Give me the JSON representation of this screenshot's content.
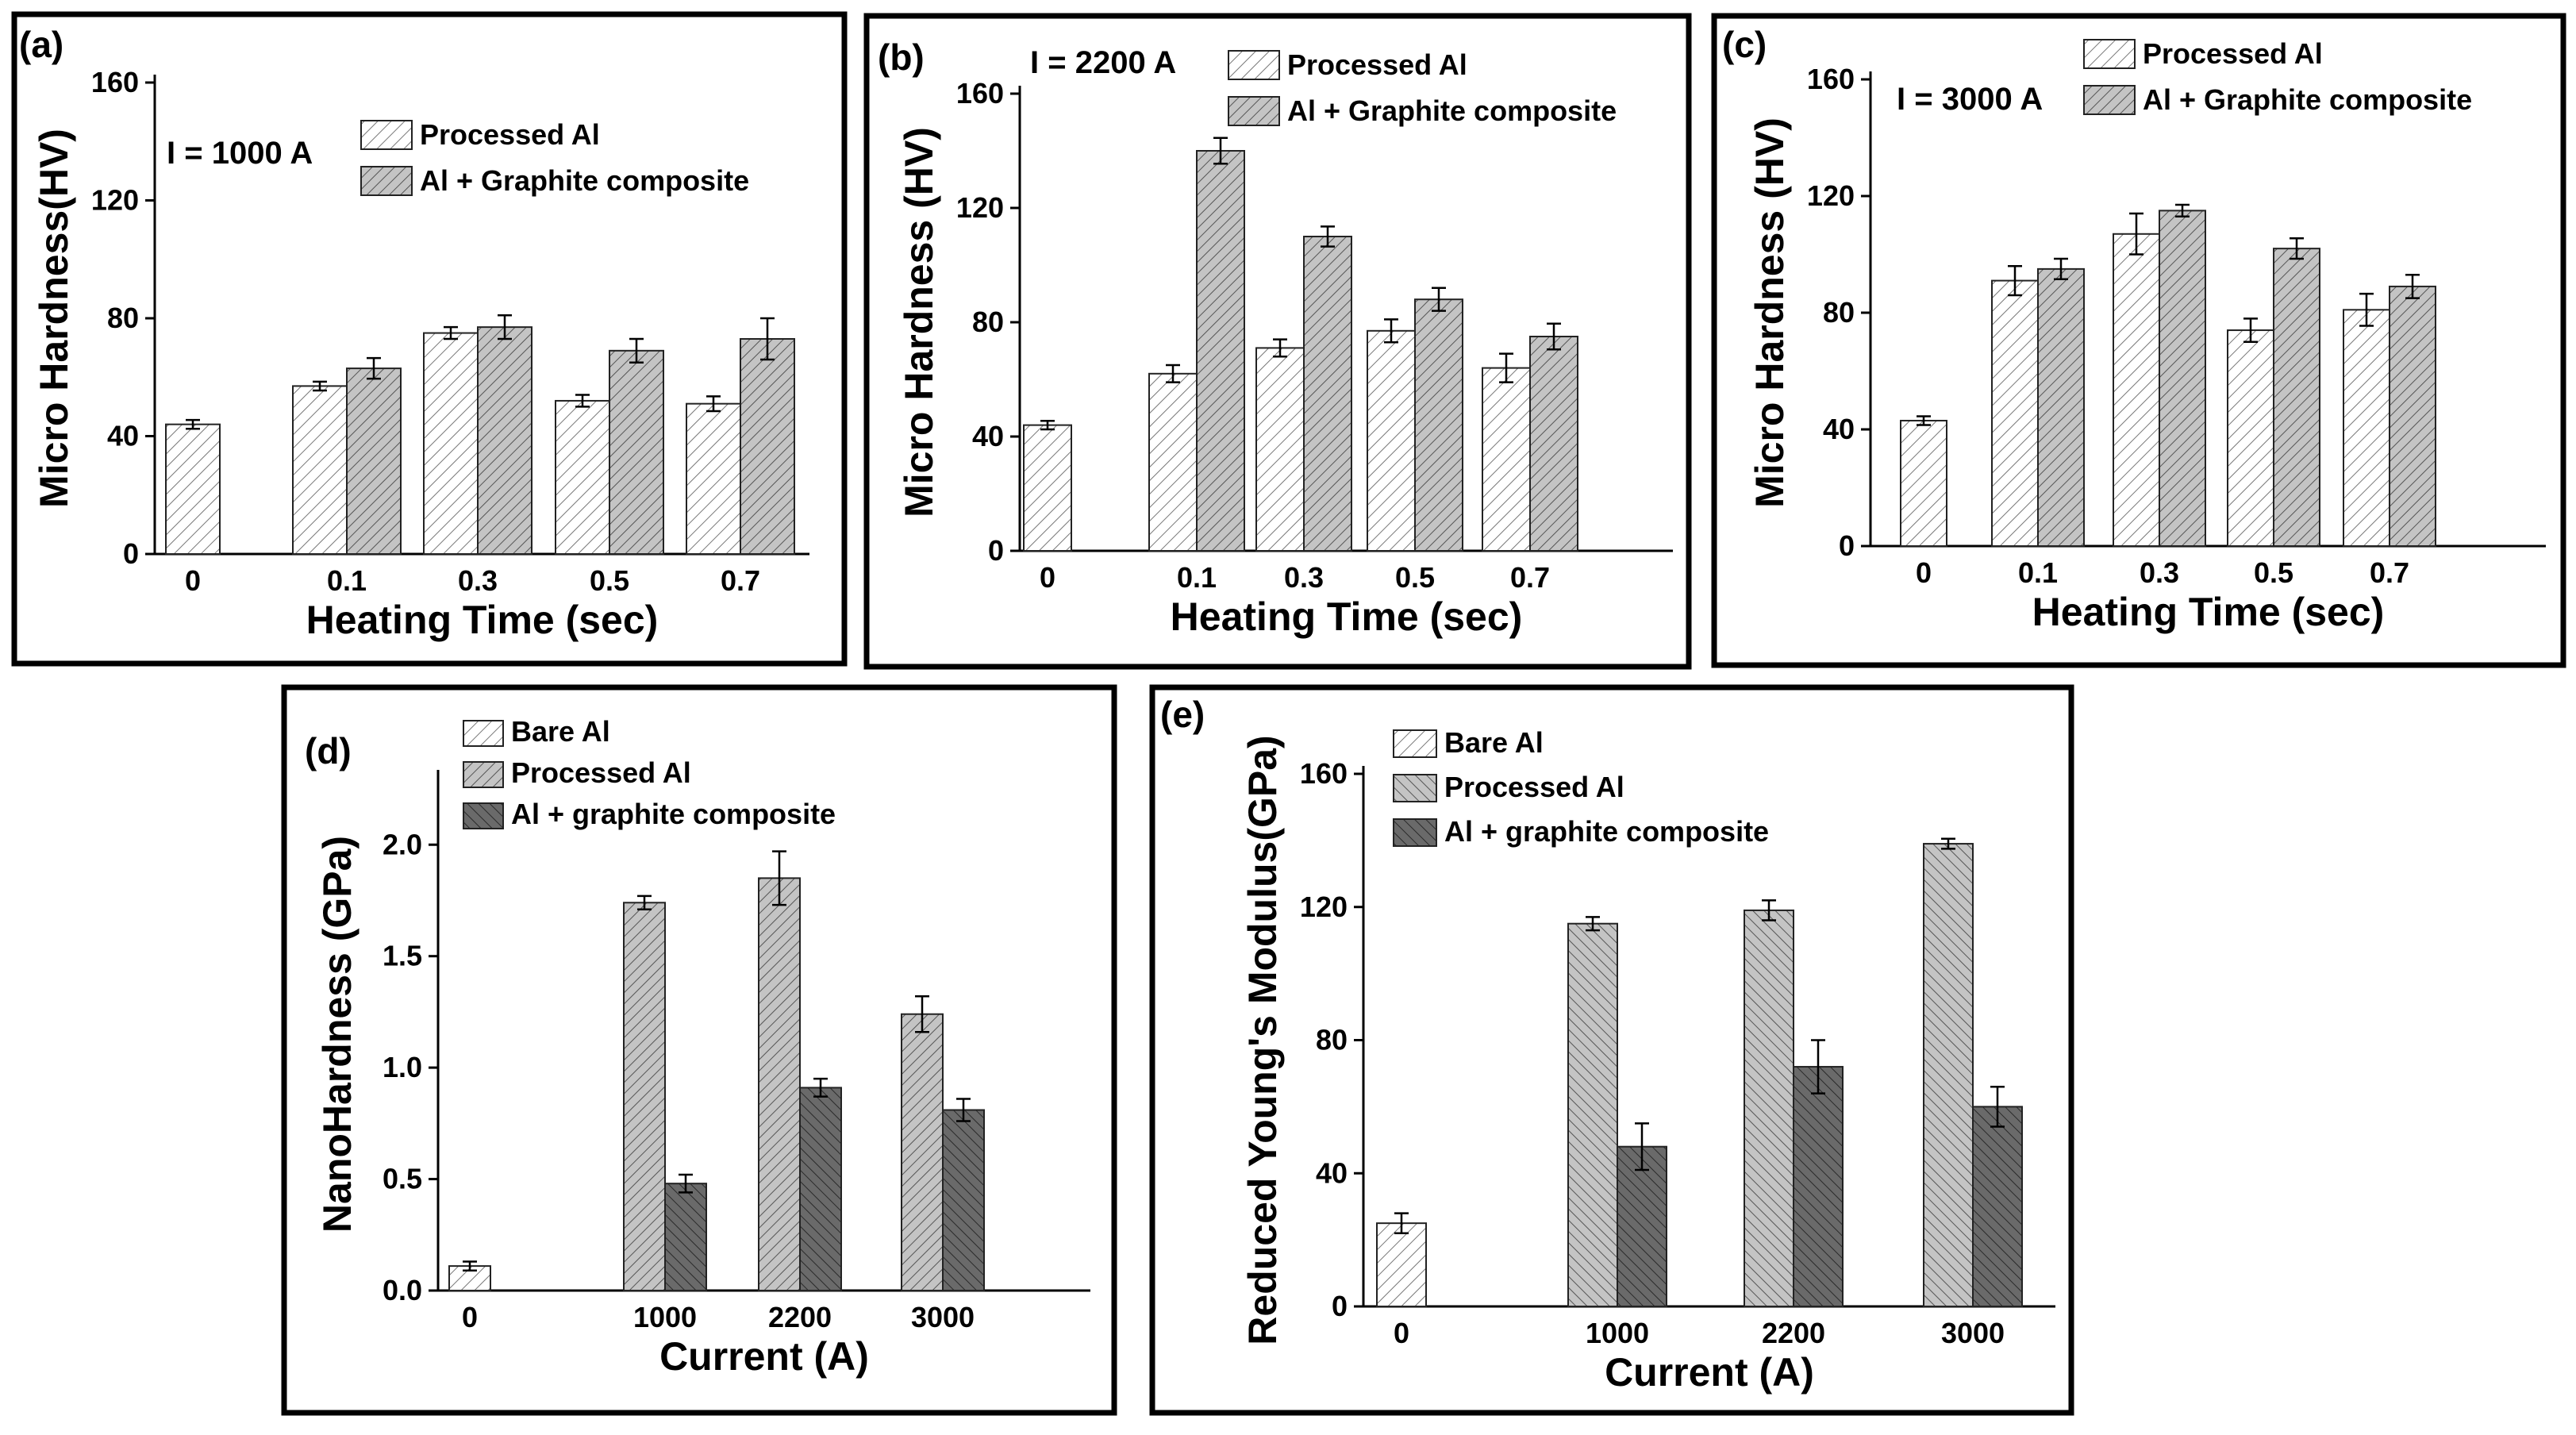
{
  "chart_data": [
    {
      "type": "bar",
      "panel_label": "(a)",
      "annotation": "I = 1000 A",
      "title": "",
      "xlabel": "Heating Time (sec)",
      "ylabel": "Micro Hardness(HV)",
      "categories": [
        "0",
        "0.1",
        "0.3",
        "0.5",
        "0.7"
      ],
      "ylim": [
        0,
        160
      ],
      "yticks": [
        "0",
        "40",
        "80",
        "120",
        "160"
      ],
      "series": [
        {
          "name": "Processed Al",
          "values": [
            44,
            57,
            75,
            52,
            51
          ],
          "errors": [
            1.5,
            1.5,
            2,
            2,
            2.5
          ]
        },
        {
          "name": "Al + Graphite composite",
          "values": [
            null,
            63,
            77,
            69,
            73
          ],
          "errors": [
            null,
            3.5,
            4,
            4,
            7
          ]
        }
      ],
      "legend": "top-right"
    },
    {
      "type": "bar",
      "panel_label": "(b)",
      "annotation": "I = 2200 A",
      "title": "",
      "xlabel": "Heating Time (sec)",
      "ylabel": "Micro Hardness (HV)",
      "categories": [
        "0",
        "0.1",
        "0.3",
        "0.5",
        "0.7"
      ],
      "ylim": [
        0,
        160
      ],
      "yticks": [
        "0",
        "40",
        "80",
        "120",
        "160"
      ],
      "series": [
        {
          "name": "Processed Al",
          "values": [
            44,
            62,
            71,
            77,
            64
          ],
          "errors": [
            1.5,
            3,
            3,
            4,
            5
          ]
        },
        {
          "name": "Al + Graphite composite",
          "values": [
            null,
            140,
            110,
            88,
            75
          ],
          "errors": [
            null,
            4.5,
            3.5,
            4,
            4.5
          ]
        }
      ],
      "legend": "top-right"
    },
    {
      "type": "bar",
      "panel_label": "(c)",
      "annotation": "I = 3000 A",
      "title": "",
      "xlabel": "Heating Time (sec)",
      "ylabel": "Micro Hardness (HV)",
      "categories": [
        "0",
        "0.1",
        "0.3",
        "0.5",
        "0.7"
      ],
      "ylim": [
        0,
        160
      ],
      "yticks": [
        "0",
        "40",
        "80",
        "120",
        "160"
      ],
      "series": [
        {
          "name": "Processed Al",
          "values": [
            43,
            91,
            107,
            74,
            81
          ],
          "errors": [
            1.5,
            5,
            7,
            4,
            5.5
          ]
        },
        {
          "name": "Al + Graphite composite",
          "values": [
            null,
            95,
            115,
            102,
            89
          ],
          "errors": [
            null,
            3.5,
            2,
            3.5,
            4
          ]
        }
      ],
      "legend": "top-right"
    },
    {
      "type": "bar",
      "panel_label": "(d)",
      "title": "",
      "xlabel": "Current (A)",
      "ylabel": "NanoHardness (GPa)",
      "categories": [
        "0",
        "1000",
        "2200",
        "3000"
      ],
      "ylim": [
        0,
        2.3
      ],
      "yticks": [
        "0.0",
        "0.5",
        "1.0",
        "1.5",
        "2.0"
      ],
      "series": [
        {
          "name": "Bare Al",
          "values": [
            0.11,
            null,
            null,
            null
          ],
          "errors": [
            0.02,
            null,
            null,
            null
          ]
        },
        {
          "name": "Processed Al",
          "values": [
            null,
            1.74,
            1.85,
            1.24
          ],
          "errors": [
            null,
            0.03,
            0.12,
            0.08
          ]
        },
        {
          "name": "Al + graphite composite",
          "values": [
            null,
            0.48,
            0.91,
            0.81
          ],
          "errors": [
            null,
            0.04,
            0.04,
            0.05
          ]
        }
      ],
      "legend": "top-left"
    },
    {
      "type": "bar",
      "panel_label": "(e)",
      "title": "",
      "xlabel": "Current (A)",
      "ylabel": "Reduced Young's Modulus(GPa)",
      "categories": [
        "0",
        "1000",
        "2200",
        "3000"
      ],
      "ylim": [
        0,
        160
      ],
      "yticks": [
        "0",
        "40",
        "80",
        "120",
        "160"
      ],
      "series": [
        {
          "name": "Bare Al",
          "values": [
            25,
            null,
            null,
            null
          ],
          "errors": [
            3,
            null,
            null,
            null
          ]
        },
        {
          "name": "Processed Al",
          "values": [
            null,
            115,
            119,
            139
          ],
          "errors": [
            null,
            2,
            3,
            1.5
          ]
        },
        {
          "name": "Al + graphite composite",
          "values": [
            null,
            48,
            72,
            60
          ],
          "errors": [
            null,
            7,
            8,
            6
          ]
        }
      ],
      "legend": "top-left"
    }
  ]
}
